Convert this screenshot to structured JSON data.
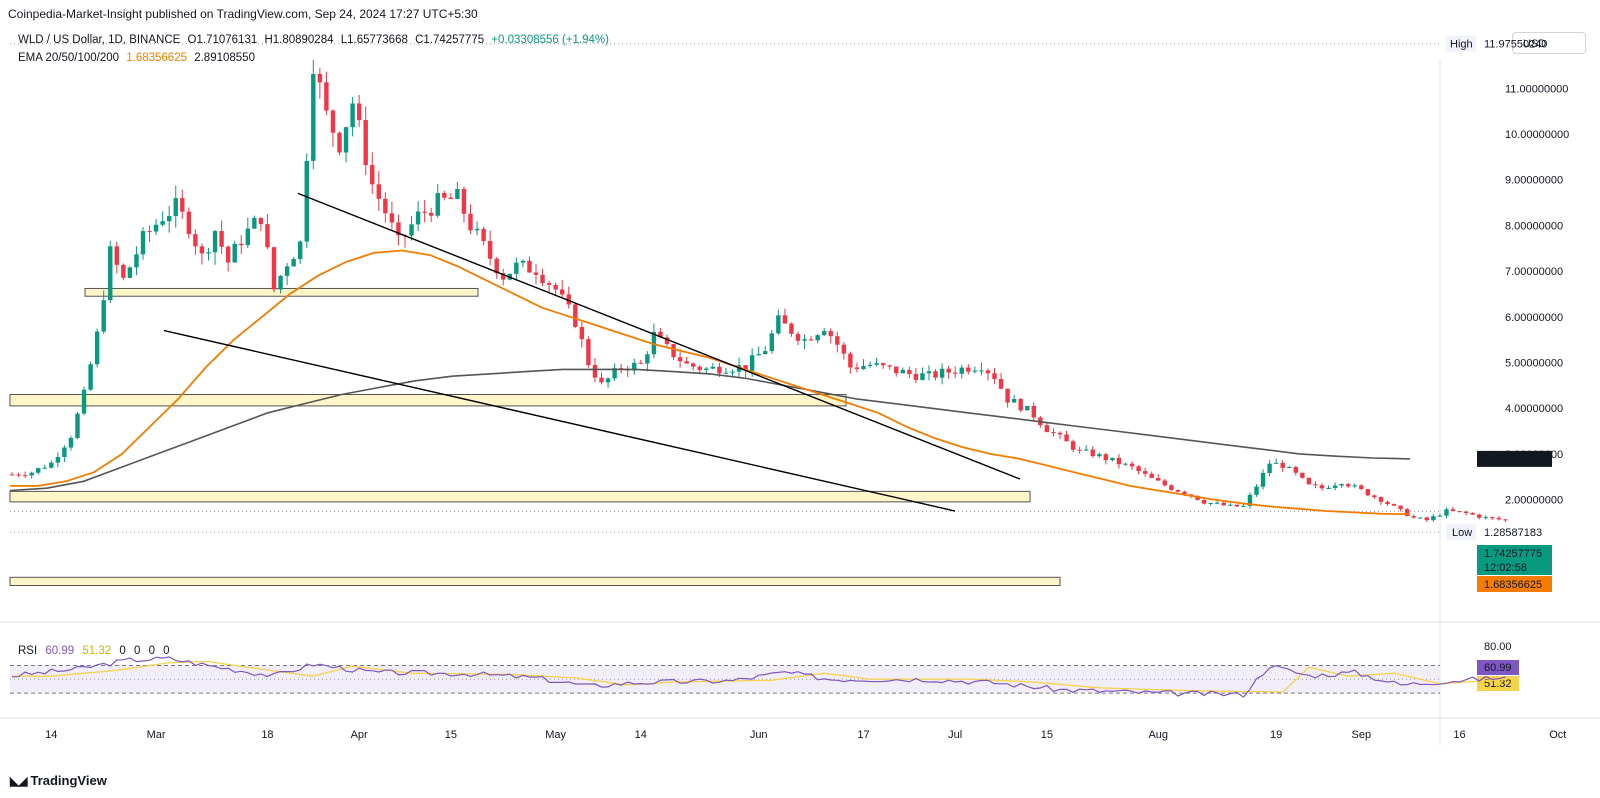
{
  "header": {
    "publisher": "Coinpedia-Market-Insight published on TradingView.com, Sep 24, 2024 17:27 UTC+5:30",
    "currency_button": "USD"
  },
  "legend": {
    "symbol": "WLD / US Dollar, 1D, BINANCE",
    "open": "O1.71076131",
    "high": "H1.80890284",
    "low": "L1.65773668",
    "close": "C1.74257775",
    "change": "+0.03308556 (+1.94%)",
    "ema_label": "EMA 20/50/100/200",
    "ema_val1": "1.68356625",
    "ema_val2": "2.89108550"
  },
  "rsi_legend": {
    "label": "RSI",
    "val1": "60.99",
    "val2": "51.32",
    "z1": "0",
    "z2": "0",
    "z3": "0",
    "z4": "0"
  },
  "footer": {
    "brand": "TradingView"
  },
  "colors": {
    "up": "#089981",
    "down": "#f23645",
    "ema50": "#f57c00",
    "ema200": "#555555",
    "rsi": "#7e57c2",
    "rsi_ma": "#f5d34a",
    "zone": "#fff5c8"
  },
  "chart_data": {
    "type": "candlestick",
    "y_axis": {
      "ticks": [
        "11.00000000",
        "10.00000000",
        "9.00000000",
        "8.00000000",
        "7.00000000",
        "6.00000000",
        "5.00000000",
        "4.00000000",
        "3.00000000",
        "2.00000000"
      ],
      "tick_values": [
        11,
        10,
        9,
        8,
        7,
        6,
        5,
        4,
        3,
        2
      ],
      "high_label": "High",
      "high_value": "11.97550240",
      "low_label": "Low",
      "low_value": "1.28587183",
      "ema200_label": "2.89108550",
      "price_label": "1.74257775",
      "countdown": "12:02:58",
      "ema50_label": "1.68356625"
    },
    "x_axis": {
      "labels": [
        "14",
        "Mar",
        "18",
        "Apr",
        "15",
        "May",
        "14",
        "Jun",
        "17",
        "Jul",
        "15",
        "Aug",
        "19",
        "Sep",
        "16",
        "Oct"
      ]
    },
    "rsi_axis": {
      "labels": [
        "80.00"
      ],
      "current": "60.99",
      "current_ma": "51.32"
    },
    "ema50": [
      2.3,
      2.3,
      2.4,
      2.6,
      3.0,
      3.6,
      4.2,
      4.9,
      5.5,
      6.0,
      6.5,
      6.9,
      7.2,
      7.4,
      7.45,
      7.35,
      7.1,
      6.8,
      6.5,
      6.2,
      6.0,
      5.8,
      5.6,
      5.4,
      5.25,
      5.1,
      4.9,
      4.7,
      4.5,
      4.3,
      4.1,
      3.9,
      3.6,
      3.35,
      3.15,
      3.0,
      2.9,
      2.75,
      2.6,
      2.45,
      2.3,
      2.2,
      2.1,
      2.0,
      1.92,
      1.85,
      1.8,
      1.75,
      1.72,
      1.69,
      1.68
    ],
    "ema200": [
      2.2,
      2.25,
      2.4,
      2.7,
      3.0,
      3.3,
      3.6,
      3.9,
      4.1,
      4.3,
      4.45,
      4.6,
      4.7,
      4.75,
      4.8,
      4.85,
      4.85,
      4.85,
      4.8,
      4.75,
      4.65,
      4.5,
      4.35,
      4.2,
      4.1,
      4.0,
      3.9,
      3.8,
      3.7,
      3.6,
      3.5,
      3.4,
      3.3,
      3.2,
      3.1,
      3.0,
      2.95,
      2.91,
      2.89
    ],
    "candles": "generated daily OHLC for WLD/USD, Feb 8 2024 - Sep 24 2024"
  }
}
